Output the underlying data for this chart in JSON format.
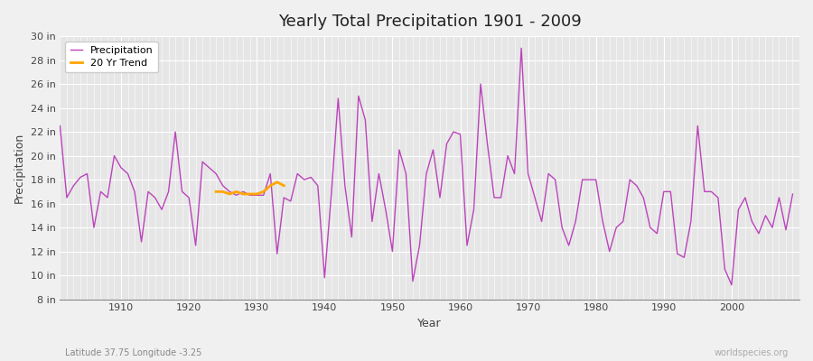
{
  "title": "Yearly Total Precipitation 1901 - 2009",
  "xlabel": "Year",
  "ylabel": "Precipitation",
  "lat_lon_label": "Latitude 37.75 Longitude -3.25",
  "watermark": "worldspecies.org",
  "line_color": "#bb44bb",
  "trend_color": "#FFA500",
  "bg_color": "#f0f0f0",
  "plot_bg_color": "#e6e6e6",
  "years": [
    1901,
    1902,
    1903,
    1904,
    1905,
    1906,
    1907,
    1908,
    1909,
    1910,
    1911,
    1912,
    1913,
    1914,
    1915,
    1916,
    1917,
    1918,
    1919,
    1920,
    1921,
    1922,
    1923,
    1924,
    1925,
    1926,
    1927,
    1928,
    1929,
    1930,
    1931,
    1932,
    1933,
    1934,
    1935,
    1936,
    1937,
    1938,
    1939,
    1940,
    1941,
    1942,
    1943,
    1944,
    1945,
    1946,
    1947,
    1948,
    1949,
    1950,
    1951,
    1952,
    1953,
    1954,
    1955,
    1956,
    1957,
    1958,
    1959,
    1960,
    1961,
    1962,
    1963,
    1964,
    1965,
    1966,
    1967,
    1968,
    1969,
    1970,
    1971,
    1972,
    1973,
    1974,
    1975,
    1976,
    1977,
    1978,
    1979,
    1980,
    1981,
    1982,
    1983,
    1984,
    1985,
    1986,
    1987,
    1988,
    1989,
    1990,
    1991,
    1992,
    1993,
    1994,
    1995,
    1996,
    1997,
    1998,
    1999,
    2000,
    2001,
    2002,
    2003,
    2004,
    2005,
    2006,
    2007,
    2008,
    2009
  ],
  "precip": [
    22.5,
    16.5,
    17.5,
    18.2,
    18.5,
    14.0,
    17.0,
    16.5,
    20.0,
    19.0,
    18.5,
    17.0,
    12.8,
    17.0,
    16.5,
    15.5,
    17.0,
    22.0,
    17.0,
    16.5,
    12.5,
    19.5,
    19.0,
    18.5,
    17.5,
    17.0,
    16.7,
    17.0,
    16.7,
    16.7,
    16.7,
    18.5,
    11.8,
    16.5,
    16.2,
    18.5,
    18.0,
    18.2,
    17.5,
    9.8,
    16.8,
    24.8,
    17.5,
    13.2,
    25.0,
    23.0,
    14.5,
    18.5,
    15.5,
    12.0,
    20.5,
    18.5,
    9.5,
    12.5,
    18.5,
    20.5,
    16.5,
    21.0,
    22.0,
    21.8,
    12.5,
    15.5,
    26.0,
    21.0,
    16.5,
    16.5,
    20.0,
    18.5,
    29.0,
    18.5,
    16.5,
    14.5,
    18.5,
    18.0,
    14.0,
    12.5,
    14.5,
    18.0,
    18.0,
    18.0,
    14.5,
    12.0,
    14.0,
    14.5,
    18.0,
    17.5,
    16.5,
    14.0,
    13.5,
    17.0,
    17.0,
    11.8,
    11.5,
    14.5,
    22.5,
    17.0,
    17.0,
    16.5,
    10.5,
    9.2,
    15.5,
    16.5,
    14.5,
    13.5,
    15.0,
    14.0,
    16.5,
    13.8,
    16.8
  ],
  "trend_years": [
    1924,
    1925,
    1926,
    1927,
    1928,
    1929,
    1930,
    1931,
    1932,
    1933,
    1934
  ],
  "trend_values": [
    17.0,
    17.0,
    16.8,
    17.0,
    16.8,
    16.8,
    16.8,
    17.0,
    17.5,
    17.8,
    17.5
  ],
  "ylim": [
    8,
    30
  ],
  "yticks": [
    8,
    10,
    12,
    14,
    16,
    18,
    20,
    22,
    24,
    26,
    28,
    30
  ],
  "ytick_labels": [
    "8 in",
    "10 in",
    "12 in",
    "14 in",
    "16 in",
    "18 in",
    "20 in",
    "22 in",
    "24 in",
    "26 in",
    "28 in",
    "30 in"
  ],
  "xticks": [
    1910,
    1920,
    1930,
    1940,
    1950,
    1960,
    1970,
    1980,
    1990,
    2000
  ],
  "xlim": [
    1901,
    2010
  ]
}
